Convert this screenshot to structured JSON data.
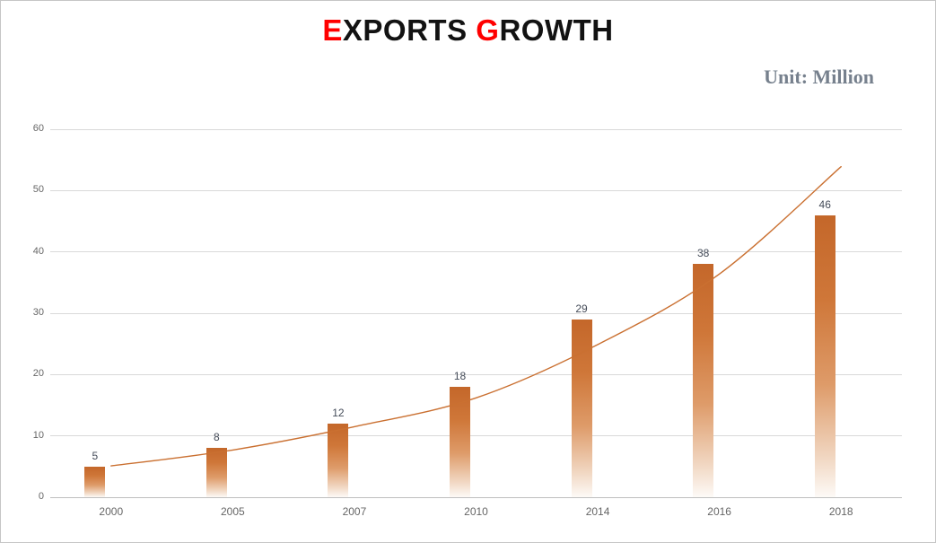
{
  "title": {
    "part1_accent": "E",
    "part1_rest": "XPORTS",
    "part2_accent": "G",
    "part2_rest": "ROWTH",
    "accent_color": "#FF0000",
    "text_color": "#121212"
  },
  "unit_label": "Unit: Million",
  "unit_color": "#76808D",
  "chart_data": {
    "type": "bar",
    "title": "EXPORTS GROWTH",
    "subtitle": "Unit: Million",
    "categories": [
      "2000",
      "2005",
      "2007",
      "2010",
      "2014",
      "2016",
      "2018"
    ],
    "series": [
      {
        "name": "exports-columns",
        "type": "column",
        "values": [
          5,
          8,
          12,
          18,
          29,
          38,
          46
        ],
        "data_labels": [
          "5",
          "8",
          "12",
          "18",
          "29",
          "38",
          "46"
        ]
      },
      {
        "name": "trend-line",
        "type": "smooth-line",
        "values": [
          5.1,
          7.7,
          11.5,
          16.2,
          24.9,
          36.4,
          53.9
        ]
      }
    ],
    "xlabel": "",
    "ylabel": "",
    "ylim": [
      0,
      60
    ],
    "yticks": [
      0,
      10,
      20,
      30,
      40,
      50,
      60
    ],
    "grid": true,
    "legend": "none",
    "colors": {
      "bar_gradient": [
        "#C4672A",
        "#CF7739",
        "#DE9B69",
        "#F1D7C2",
        "#FDFAF7"
      ],
      "line": "#CA7031",
      "gridline": "#D9D9D9",
      "axis_line": "#BFBFBF",
      "tick_label": "#666666",
      "data_label": "#454C59"
    }
  }
}
